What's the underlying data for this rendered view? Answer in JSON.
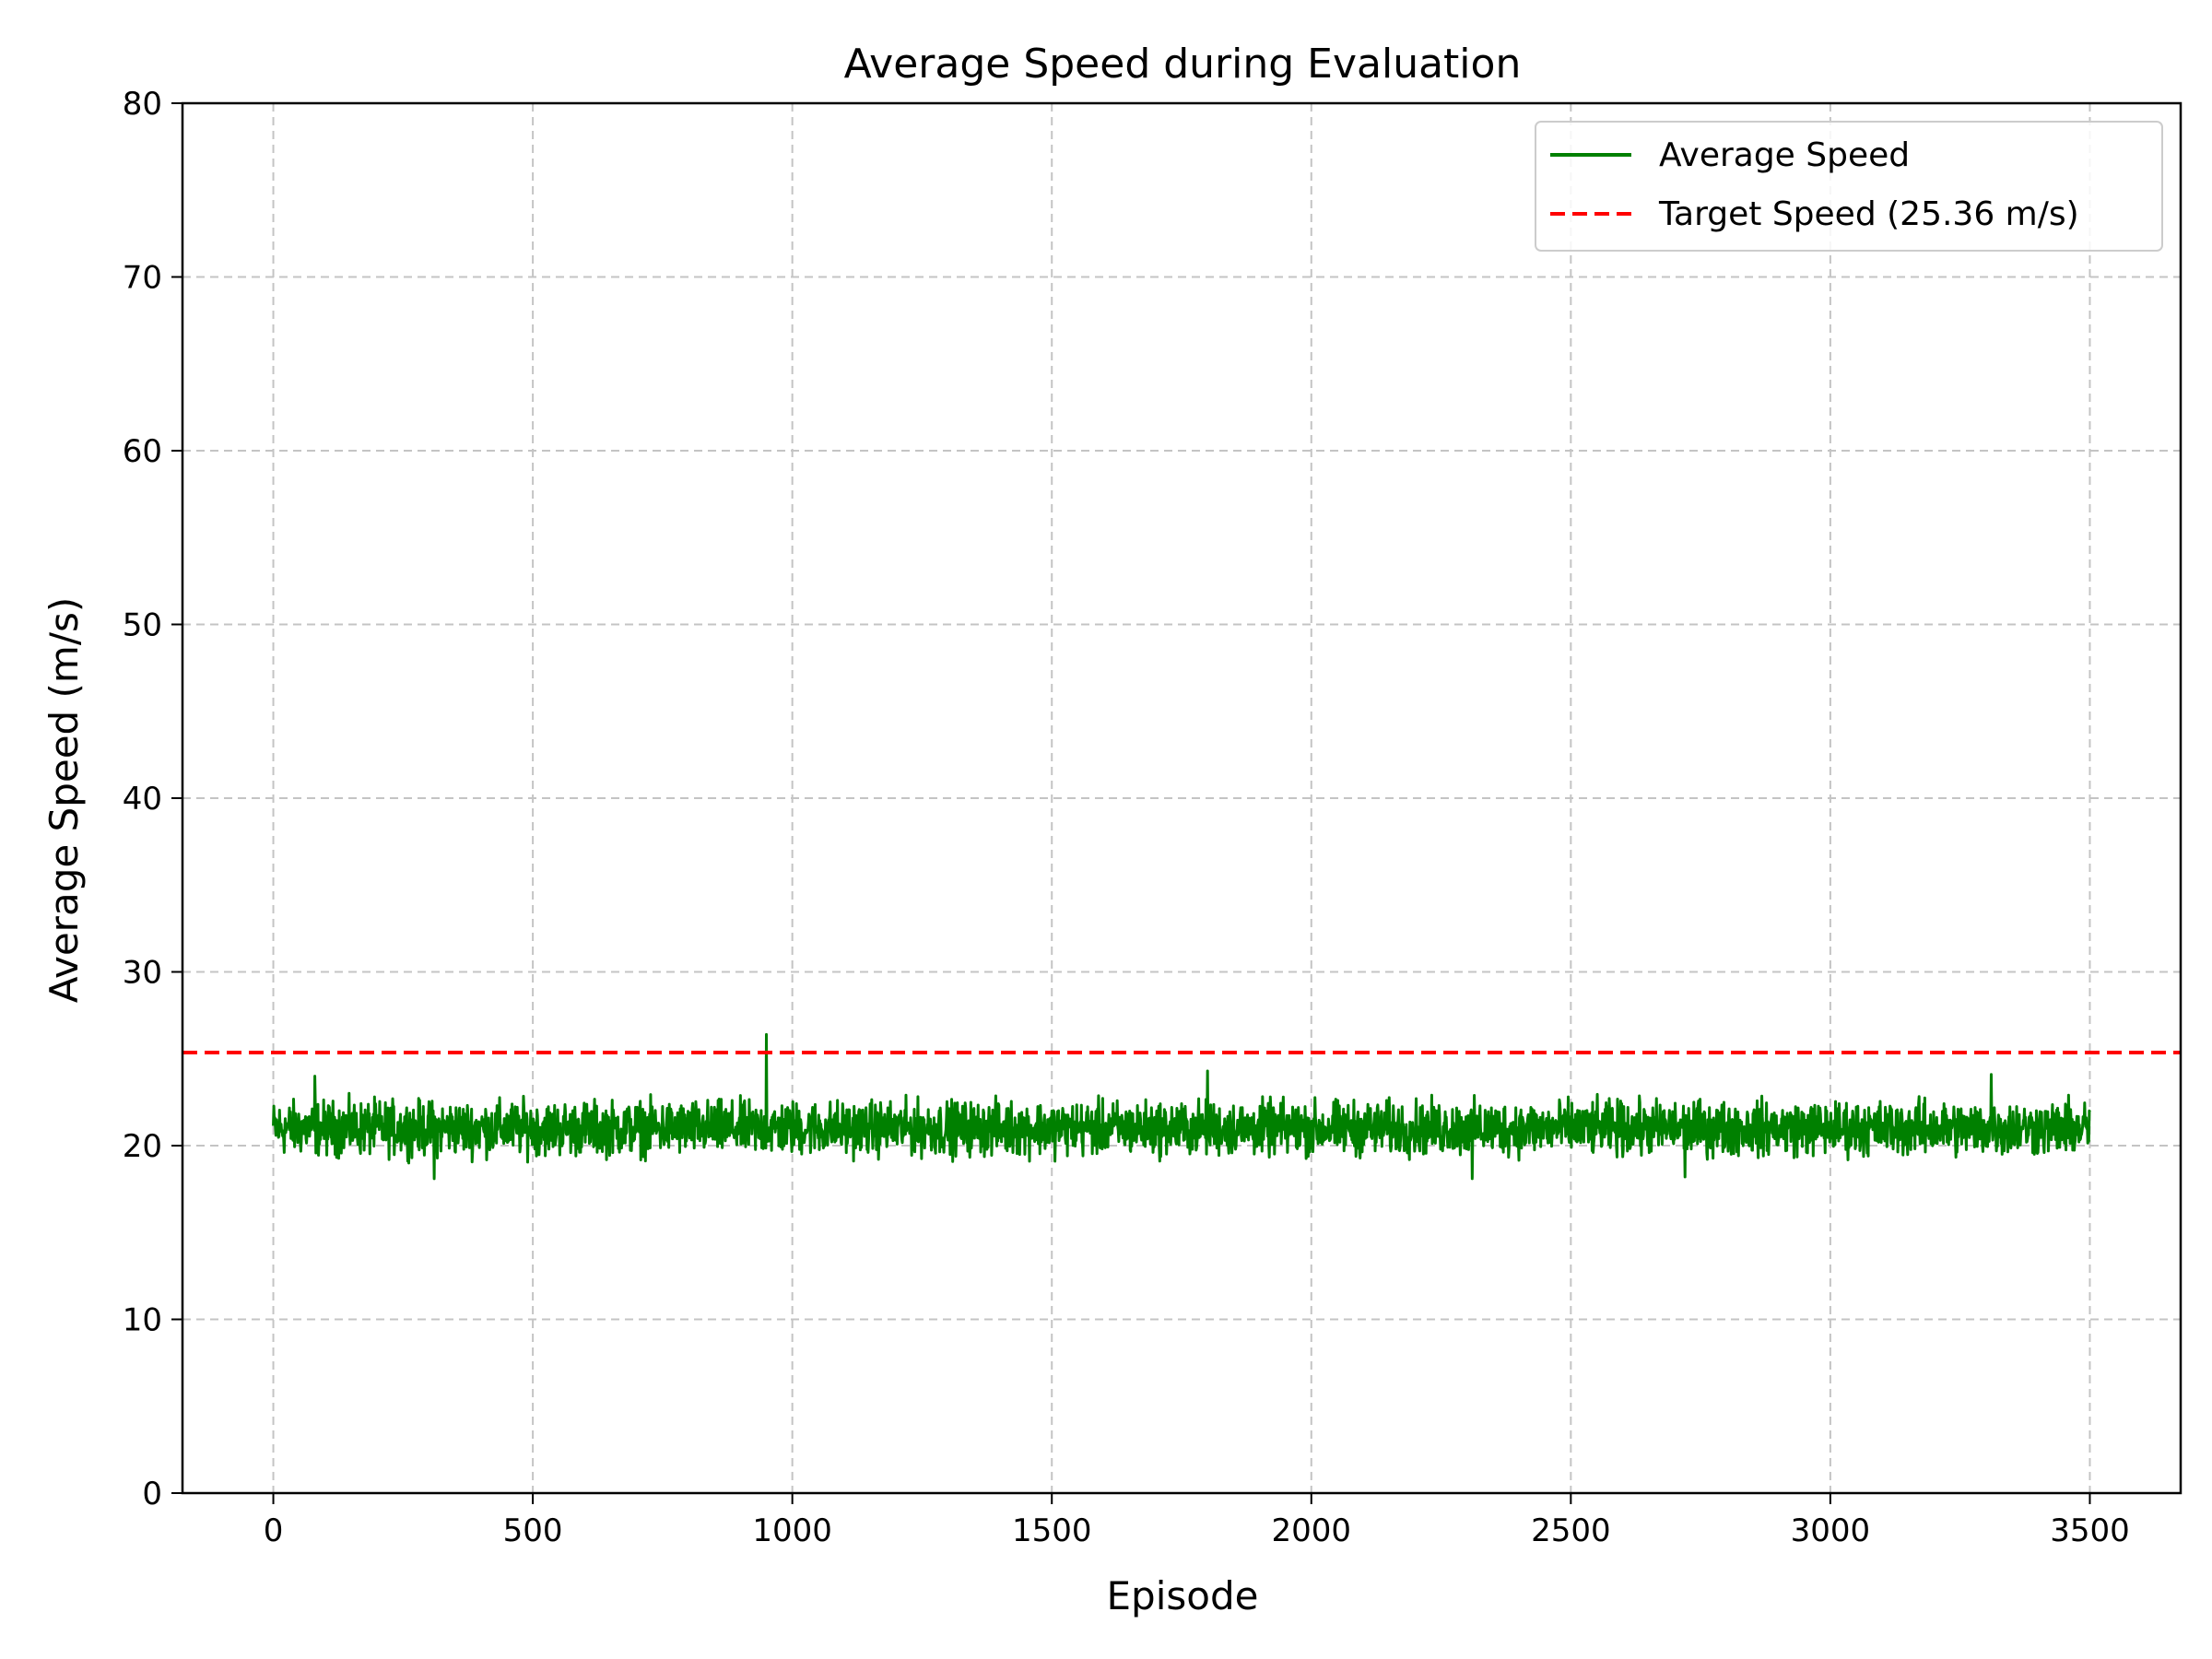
{
  "chart_data": {
    "type": "line",
    "title": "Average Speed during Evaluation",
    "xlabel": "Episode",
    "ylabel": "Average Speed (m/s)",
    "xlim": [
      -175,
      3675
    ],
    "ylim": [
      0,
      80
    ],
    "xticks": [
      0,
      500,
      1000,
      1500,
      2000,
      2500,
      3000,
      3500
    ],
    "yticks": [
      0,
      10,
      20,
      30,
      40,
      50,
      60,
      70,
      80
    ],
    "grid": true,
    "legend_position": "top-right",
    "series": [
      {
        "name": "Average Speed",
        "color": "#008000",
        "style": "solid",
        "x_range": [
          0,
          3500
        ],
        "mean": 21.0,
        "min": 18.1,
        "max": 26.4,
        "spikes": [
          {
            "x": 950,
            "y": 26.4
          },
          {
            "x": 1800,
            "y": 24.3
          },
          {
            "x": 3310,
            "y": 24.1
          },
          {
            "x": 80,
            "y": 24.0
          },
          {
            "x": 310,
            "y": 18.1
          },
          {
            "x": 2310,
            "y": 18.1
          },
          {
            "x": 2720,
            "y": 18.2
          }
        ]
      },
      {
        "name": "Target Speed (25.36 m/s)",
        "color": "#ff0000",
        "style": "dashed",
        "y": 25.36
      }
    ]
  }
}
